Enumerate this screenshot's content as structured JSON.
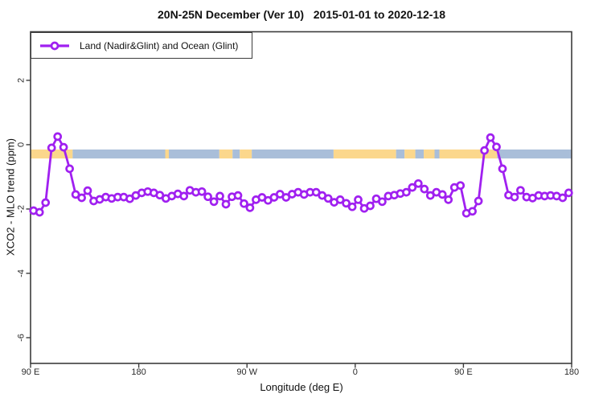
{
  "colors": {
    "series": "#a020f0",
    "marker_fill": "#ffffff",
    "land": "#fbd78c",
    "ocean": "#a9bed9",
    "axis": "#3c3c3c",
    "text": "#111111"
  },
  "chart_data": {
    "type": "line",
    "title": "20N-25N December (Ver 10)   2015-01-01 to 2020-12-18",
    "xlabel": "Longitude (deg E)",
    "ylabel": "XCO2 - MLO trend (ppm)",
    "xlim": [
      90,
      540
    ],
    "ylim": [
      -6.8,
      3.51
    ],
    "grid": false,
    "legend_position": "top-left",
    "xticks": [
      {
        "x": 90,
        "label": "90 E"
      },
      {
        "x": 180,
        "label": "180"
      },
      {
        "x": 270,
        "label": "90 W"
      },
      {
        "x": 360,
        "label": "0"
      },
      {
        "x": 450,
        "label": "90 E"
      },
      {
        "x": 540,
        "label": "180"
      }
    ],
    "yticks": [
      {
        "y": 2,
        "label": "2"
      },
      {
        "y": 0,
        "label": "0"
      },
      {
        "y": -2,
        "label": "-2"
      },
      {
        "y": -4,
        "label": "-4"
      },
      {
        "y": -6,
        "label": "-6"
      }
    ],
    "series": [
      {
        "name": "Land (Nadir&Glint) and Ocean (Glint)",
        "marker": "open-circle",
        "x": [
          92.5,
          97.5,
          102.5,
          107.5,
          112.5,
          117.5,
          122.5,
          127.5,
          132.5,
          137.5,
          142.5,
          147.5,
          152.5,
          157.5,
          162.5,
          167.5,
          172.5,
          177.5,
          182.5,
          187.5,
          192.5,
          197.5,
          202.5,
          207.5,
          212.5,
          217.5,
          222.5,
          227.5,
          232.5,
          237.5,
          242.5,
          247.5,
          252.5,
          257.5,
          262.5,
          267.5,
          272.5,
          277.5,
          282.5,
          287.5,
          292.5,
          297.5,
          302.5,
          307.5,
          312.5,
          317.5,
          322.5,
          327.5,
          332.5,
          337.5,
          342.5,
          347.5,
          352.5,
          357.5,
          362.5,
          367.5,
          372.5,
          377.5,
          382.5,
          387.5,
          392.5,
          397.5,
          402.5,
          407.5,
          412.5,
          417.5,
          422.5,
          427.5,
          432.5,
          437.5,
          442.5,
          447.5,
          452.5,
          457.5,
          462.5,
          467.5,
          472.5,
          477.5,
          482.5,
          487.5,
          492.5,
          497.5,
          502.5,
          507.5,
          512.5,
          517.5,
          522.5,
          527.5,
          532.5,
          537.5
        ],
        "y": [
          -2.05,
          -2.1,
          -1.8,
          -0.1,
          0.25,
          -0.08,
          -0.75,
          -1.55,
          -1.65,
          -1.43,
          -1.75,
          -1.7,
          -1.63,
          -1.67,
          -1.63,
          -1.63,
          -1.68,
          -1.58,
          -1.5,
          -1.46,
          -1.5,
          -1.57,
          -1.67,
          -1.6,
          -1.53,
          -1.6,
          -1.42,
          -1.48,
          -1.46,
          -1.62,
          -1.77,
          -1.6,
          -1.85,
          -1.62,
          -1.58,
          -1.83,
          -1.96,
          -1.71,
          -1.64,
          -1.73,
          -1.64,
          -1.54,
          -1.64,
          -1.54,
          -1.48,
          -1.55,
          -1.48,
          -1.48,
          -1.58,
          -1.67,
          -1.79,
          -1.71,
          -1.82,
          -1.93,
          -1.71,
          -1.98,
          -1.9,
          -1.68,
          -1.77,
          -1.6,
          -1.57,
          -1.52,
          -1.48,
          -1.33,
          -1.21,
          -1.38,
          -1.58,
          -1.48,
          -1.55,
          -1.71,
          -1.33,
          -1.27,
          -2.13,
          -2.07,
          -1.75,
          -0.18,
          0.22,
          -0.07,
          -0.75,
          -1.57,
          -1.63,
          -1.42,
          -1.63,
          -1.66,
          -1.58,
          -1.6,
          -1.58,
          -1.6,
          -1.65,
          -1.5
        ]
      }
    ],
    "map_band": {
      "description": "land/ocean strip along 20N-25N latitude band",
      "y_top": -0.15,
      "y_bottom": -0.43,
      "segments": [
        {
          "surface": "land",
          "from": 90,
          "to": 125
        },
        {
          "surface": "ocean",
          "from": 125,
          "to": 202
        },
        {
          "surface": "land",
          "from": 202,
          "to": 205
        },
        {
          "surface": "ocean",
          "from": 205,
          "to": 247
        },
        {
          "surface": "land",
          "from": 247,
          "to": 258
        },
        {
          "surface": "ocean",
          "from": 258,
          "to": 264
        },
        {
          "surface": "land",
          "from": 264,
          "to": 274
        },
        {
          "surface": "ocean",
          "from": 274,
          "to": 342
        },
        {
          "surface": "land",
          "from": 342,
          "to": 394
        },
        {
          "surface": "ocean",
          "from": 394,
          "to": 401
        },
        {
          "surface": "land",
          "from": 401,
          "to": 410
        },
        {
          "surface": "ocean",
          "from": 410,
          "to": 417
        },
        {
          "surface": "land",
          "from": 417,
          "to": 426
        },
        {
          "surface": "ocean",
          "from": 426,
          "to": 430
        },
        {
          "surface": "land",
          "from": 430,
          "to": 478
        },
        {
          "surface": "ocean",
          "from": 478,
          "to": 540
        }
      ]
    }
  }
}
